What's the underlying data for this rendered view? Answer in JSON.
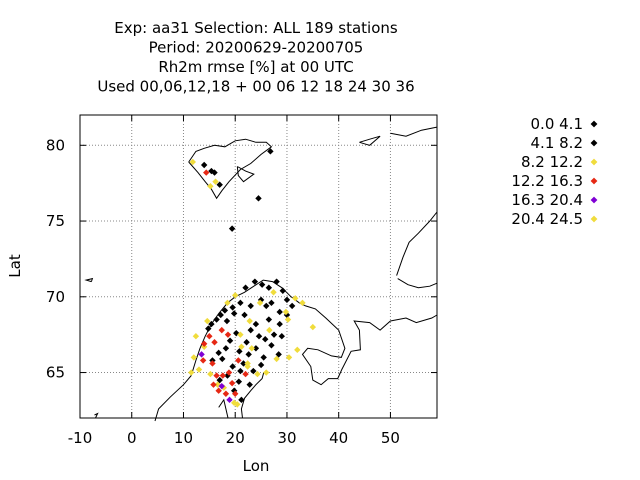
{
  "chart_data": {
    "type": "scatter",
    "title_lines": [
      "Exp: aa31   Selection: ALL    189 stations",
      "Period: 20200629-20200705",
      "Rh2m rmse [%] at  00 UTC",
      "Used  00,06,12,18 + 00 06 12 18 24 30 36"
    ],
    "xlabel": "Lon",
    "ylabel": "Lat",
    "xlim": [
      -10,
      59
    ],
    "ylim": [
      62,
      82
    ],
    "xticks": [
      -10,
      0,
      10,
      20,
      30,
      40,
      50
    ],
    "yticks": [
      65,
      70,
      75,
      80
    ],
    "grid": true,
    "legend_position": "right",
    "series": [
      {
        "name": "0.0 4.1",
        "color": "#000000",
        "points": [
          [
            26.8,
            79.6
          ],
          [
            19.4,
            74.5
          ],
          [
            24.5,
            76.5
          ],
          [
            15.4,
            78.3
          ],
          [
            14.0,
            78.7
          ],
          [
            22.0,
            70.6
          ],
          [
            23.8,
            71.0
          ],
          [
            25.2,
            70.8
          ],
          [
            26.5,
            70.6
          ],
          [
            28.0,
            71.0
          ],
          [
            29.2,
            70.4
          ],
          [
            30.0,
            69.8
          ],
          [
            27.0,
            69.6
          ],
          [
            25.0,
            69.8
          ],
          [
            23.0,
            69.4
          ],
          [
            21.0,
            69.6
          ],
          [
            19.5,
            69.3
          ],
          [
            18.0,
            69.1
          ],
          [
            17.2,
            68.8
          ],
          [
            16.4,
            68.5
          ],
          [
            15.4,
            68.2
          ],
          [
            14.8,
            67.9
          ],
          [
            21.8,
            68.8
          ],
          [
            24.0,
            68.2
          ],
          [
            26.5,
            68.5
          ],
          [
            28.6,
            68.2
          ],
          [
            30.0,
            68.8
          ],
          [
            23.0,
            67.8
          ],
          [
            25.8,
            67.2
          ],
          [
            27.5,
            67.5
          ],
          [
            29.0,
            67.4
          ],
          [
            22.2,
            67.0
          ],
          [
            20.2,
            67.6
          ],
          [
            19.0,
            67.1
          ],
          [
            18.2,
            66.6
          ],
          [
            20.8,
            66.4
          ],
          [
            22.6,
            66.2
          ],
          [
            24.0,
            66.6
          ],
          [
            25.5,
            66.0
          ],
          [
            27.0,
            66.8
          ],
          [
            28.4,
            66.2
          ],
          [
            17.5,
            65.9
          ],
          [
            19.5,
            65.4
          ],
          [
            21.6,
            65.6
          ],
          [
            23.5,
            65.1
          ],
          [
            25.0,
            65.5
          ],
          [
            18.5,
            64.8
          ],
          [
            20.7,
            64.4
          ],
          [
            22.8,
            64.2
          ],
          [
            19.8,
            63.8
          ],
          [
            21.2,
            63.2
          ]
        ]
      },
      {
        "name": "4.1 8.2",
        "color": "#000000",
        "points": [
          [
            16.0,
            78.2
          ],
          [
            17.0,
            77.4
          ],
          [
            18.4,
            68.4
          ],
          [
            19.8,
            68.9
          ],
          [
            26.0,
            69.4
          ],
          [
            28.6,
            69.0
          ],
          [
            31.0,
            69.4
          ],
          [
            24.6,
            67.4
          ],
          [
            16.8,
            66.3
          ],
          [
            21.0,
            65.1
          ],
          [
            17.0,
            64.5
          ],
          [
            15.6,
            65.8
          ]
        ]
      },
      {
        "name": "8.2 12.2",
        "color": "#f0dc3c",
        "points": [
          [
            11.8,
            78.9
          ],
          [
            15.2,
            77.3
          ],
          [
            16.2,
            77.6
          ],
          [
            27.4,
            70.3
          ],
          [
            29.8,
            69.0
          ],
          [
            30.2,
            68.5
          ],
          [
            31.6,
            69.9
          ],
          [
            33.0,
            69.6
          ],
          [
            35.0,
            68.0
          ],
          [
            32.0,
            66.5
          ],
          [
            30.4,
            66.0
          ],
          [
            28.0,
            65.9
          ],
          [
            26.0,
            65.0
          ],
          [
            24.3,
            64.9
          ],
          [
            22.4,
            65.4
          ],
          [
            21.0,
            67.5
          ],
          [
            24.8,
            69.6
          ],
          [
            22.8,
            68.4
          ],
          [
            26.6,
            67.8
          ],
          [
            20.0,
            70.1
          ],
          [
            18.5,
            69.6
          ],
          [
            11.5,
            65.0
          ],
          [
            12.0,
            66.0
          ],
          [
            13.0,
            65.2
          ],
          [
            14.0,
            66.7
          ],
          [
            12.4,
            67.4
          ],
          [
            14.6,
            68.4
          ],
          [
            15.2,
            64.9
          ],
          [
            16.6,
            64.2
          ],
          [
            17.8,
            64.0
          ],
          [
            19.8,
            63.0
          ],
          [
            21.2,
            66.7
          ],
          [
            23.2,
            66.6
          ]
        ]
      },
      {
        "name": "12.2 16.3",
        "color": "#e62814",
        "points": [
          [
            14.4,
            78.2
          ],
          [
            14.0,
            66.9
          ],
          [
            15.0,
            67.4
          ],
          [
            16.0,
            67.0
          ],
          [
            17.4,
            67.8
          ],
          [
            18.6,
            67.5
          ],
          [
            15.6,
            65.6
          ],
          [
            16.4,
            64.8
          ],
          [
            17.6,
            64.8
          ],
          [
            18.8,
            65.0
          ],
          [
            19.4,
            64.3
          ],
          [
            20.0,
            63.6
          ],
          [
            18.2,
            63.6
          ],
          [
            16.8,
            63.8
          ],
          [
            15.8,
            64.2
          ],
          [
            22.0,
            64.9
          ],
          [
            20.6,
            65.8
          ],
          [
            13.8,
            65.8
          ]
        ]
      },
      {
        "name": "16.3 20.4",
        "color": "#7f00d4",
        "points": [
          [
            17.4,
            64.1
          ],
          [
            13.5,
            66.2
          ],
          [
            18.9,
            63.2
          ]
        ]
      },
      {
        "name": "20.4 24.5",
        "color": "#f0dc3c",
        "points": [
          [
            22.4,
            65.6
          ],
          [
            20.4,
            62.9
          ]
        ]
      }
    ]
  }
}
